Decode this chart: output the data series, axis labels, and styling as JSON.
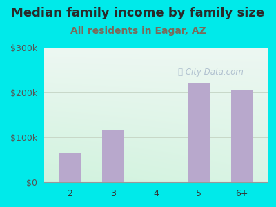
{
  "title": "Median family income by family size",
  "subtitle": "All residents in Eagar, AZ",
  "categories": [
    "2",
    "3",
    "4",
    "5",
    "6+"
  ],
  "values": [
    65000,
    115000,
    0,
    220000,
    205000
  ],
  "bar_color": "#b8a8cc",
  "title_color": "#2a2a2a",
  "subtitle_color": "#7a6a5a",
  "outer_bg": "#00eaea",
  "ylim": [
    0,
    300000
  ],
  "yticks": [
    0,
    100000,
    200000,
    300000
  ],
  "ytick_labels": [
    "$0",
    "$100k",
    "$200k",
    "$300k"
  ],
  "watermark": "City-Data.com",
  "watermark_color": "#aabbcc",
  "title_fontsize": 13,
  "subtitle_fontsize": 10,
  "tick_fontsize": 9,
  "grid_color": "#c8d8c8"
}
